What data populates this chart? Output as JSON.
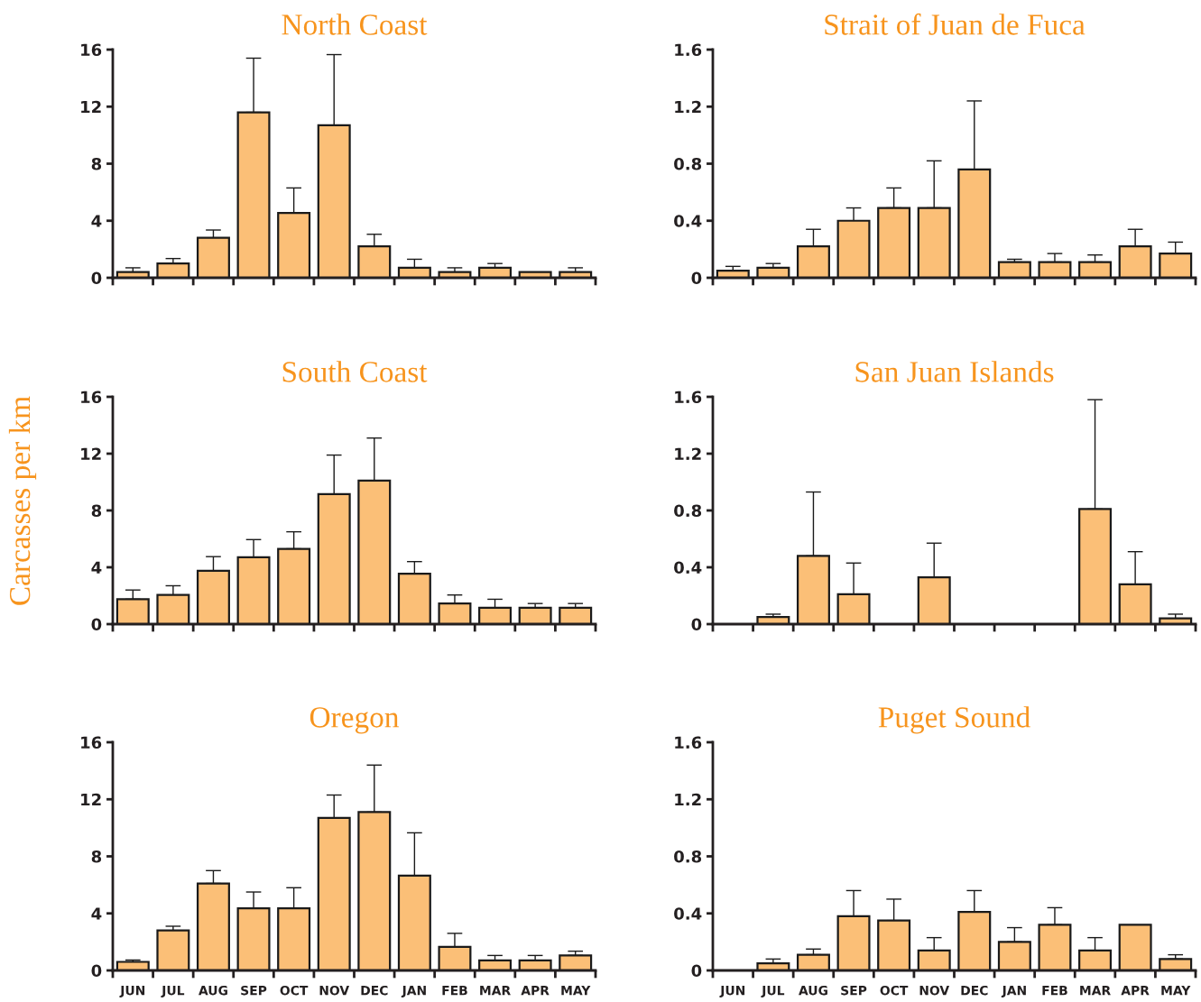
{
  "chart_data": [
    {
      "type": "bar",
      "title": "North Coast",
      "categories": [
        null,
        null,
        null,
        null,
        null,
        null,
        null,
        null,
        null,
        null,
        null,
        null
      ],
      "color": "#fbbf77",
      "ylim": [
        0,
        16
      ],
      "yticks": [
        0,
        4,
        8,
        12,
        16
      ],
      "values": [
        0.4,
        1.0,
        2.8,
        11.6,
        4.55,
        10.7,
        2.2,
        0.7,
        0.4,
        0.7,
        0.4,
        0.4
      ],
      "errors": [
        [
          0.4,
          0.7
        ],
        [
          1.0,
          1.35
        ],
        [
          2.8,
          3.35
        ],
        [
          11.6,
          15.4
        ],
        [
          4.55,
          6.3
        ],
        [
          10.7,
          15.65
        ],
        [
          2.2,
          3.05
        ],
        [
          0.7,
          1.3
        ],
        [
          0.4,
          0.7
        ],
        [
          0.7,
          1.0
        ],
        null,
        [
          0.4,
          0.7
        ]
      ]
    },
    {
      "type": "bar",
      "title": "Strait of Juan de Fuca",
      "categories": [
        null,
        null,
        null,
        null,
        null,
        null,
        null,
        null,
        null,
        null,
        null,
        null
      ],
      "color": "#fbbf77",
      "ylim": [
        0,
        1.6
      ],
      "yticks": [
        0,
        0.4,
        0.8,
        1.2,
        1.6
      ],
      "values": [
        0.05,
        0.07,
        0.22,
        0.4,
        0.49,
        0.49,
        0.76,
        0.11,
        0.11,
        0.11,
        0.22,
        0.17
      ],
      "errors": [
        [
          0.05,
          0.08
        ],
        [
          0.07,
          0.1
        ],
        [
          0.22,
          0.34
        ],
        [
          0.4,
          0.49
        ],
        [
          0.49,
          0.63
        ],
        [
          0.49,
          0.82
        ],
        [
          0.76,
          1.24
        ],
        [
          0.11,
          0.13
        ],
        [
          0.11,
          0.17
        ],
        [
          0.11,
          0.16
        ],
        [
          0.22,
          0.34
        ],
        [
          0.17,
          0.25
        ]
      ]
    },
    {
      "type": "bar",
      "title": "South Coast",
      "ylabel": "Carcasses per km",
      "categories": [
        null,
        null,
        null,
        null,
        null,
        null,
        null,
        null,
        null,
        null,
        null,
        null
      ],
      "color": "#fbbf77",
      "ylim": [
        0,
        16
      ],
      "yticks": [
        0,
        4,
        8,
        12,
        16
      ],
      "values": [
        1.75,
        2.05,
        3.75,
        4.7,
        5.3,
        9.15,
        10.1,
        3.55,
        1.45,
        1.15,
        1.15,
        1.15
      ],
      "errors": [
        [
          1.75,
          2.4
        ],
        [
          2.05,
          2.7
        ],
        [
          3.75,
          4.75
        ],
        [
          4.7,
          5.95
        ],
        [
          5.3,
          6.5
        ],
        [
          9.15,
          11.9
        ],
        [
          10.1,
          13.1
        ],
        [
          3.55,
          4.4
        ],
        [
          1.45,
          2.05
        ],
        [
          1.15,
          1.75
        ],
        [
          1.15,
          1.45
        ],
        [
          1.15,
          1.45
        ]
      ]
    },
    {
      "type": "bar",
      "title": "San Juan Islands",
      "categories": [
        null,
        null,
        null,
        null,
        null,
        null,
        null,
        null,
        null,
        null,
        null,
        null
      ],
      "color": "#fbbf77",
      "ylim": [
        0,
        1.6
      ],
      "yticks": [
        0,
        0.4,
        0.8,
        1.2,
        1.6
      ],
      "values": [
        null,
        0.05,
        0.48,
        0.21,
        null,
        0.33,
        null,
        null,
        null,
        0.81,
        0.28,
        0.04
      ],
      "errors": [
        null,
        [
          0.05,
          0.07
        ],
        [
          0.48,
          0.93
        ],
        [
          0.21,
          0.43
        ],
        null,
        [
          0.33,
          0.57
        ],
        null,
        null,
        null,
        [
          0.81,
          1.58
        ],
        [
          0.28,
          0.51
        ],
        [
          0.04,
          0.07
        ]
      ]
    },
    {
      "type": "bar",
      "title": "Oregon",
      "categories": [
        "JUN",
        "JUL",
        "AUG",
        "SEP",
        "OCT",
        "NOV",
        "DEC",
        "JAN",
        "FEB",
        "MAR",
        "APR",
        "MAY"
      ],
      "color": "#fbbf77",
      "ylim": [
        0,
        16
      ],
      "yticks": [
        0,
        4,
        8,
        12,
        16
      ],
      "values": [
        0.6,
        2.8,
        6.1,
        4.35,
        4.35,
        10.7,
        11.1,
        6.65,
        1.65,
        0.7,
        0.7,
        1.05
      ],
      "errors": [
        [
          0.6,
          0.73
        ],
        [
          2.8,
          3.1
        ],
        [
          6.1,
          7.0
        ],
        [
          4.35,
          5.5
        ],
        [
          4.35,
          5.8
        ],
        [
          10.7,
          12.3
        ],
        [
          11.1,
          14.4
        ],
        [
          6.65,
          9.65
        ],
        [
          1.65,
          2.6
        ],
        [
          0.7,
          1.05
        ],
        [
          0.7,
          1.05
        ],
        [
          1.05,
          1.35
        ]
      ]
    },
    {
      "type": "bar",
      "title": "Puget Sound",
      "categories": [
        "JUN",
        "JUL",
        "AUG",
        "SEP",
        "OCT",
        "NOV",
        "DEC",
        "JAN",
        "FEB",
        "MAR",
        "APR",
        "MAY"
      ],
      "color": "#fbbf77",
      "ylim": [
        0,
        1.6
      ],
      "yticks": [
        0,
        0.4,
        0.8,
        1.2,
        1.6
      ],
      "values": [
        null,
        0.05,
        0.11,
        0.38,
        0.35,
        0.14,
        0.41,
        0.2,
        0.32,
        0.14,
        0.32,
        0.08
      ],
      "errors": [
        null,
        [
          0.05,
          0.08
        ],
        [
          0.11,
          0.15
        ],
        [
          0.38,
          0.56
        ],
        [
          0.35,
          0.5
        ],
        [
          0.14,
          0.23
        ],
        [
          0.41,
          0.56
        ],
        [
          0.2,
          0.3
        ],
        [
          0.32,
          0.44
        ],
        [
          0.14,
          0.23
        ],
        null,
        [
          0.08,
          0.11
        ]
      ]
    }
  ]
}
